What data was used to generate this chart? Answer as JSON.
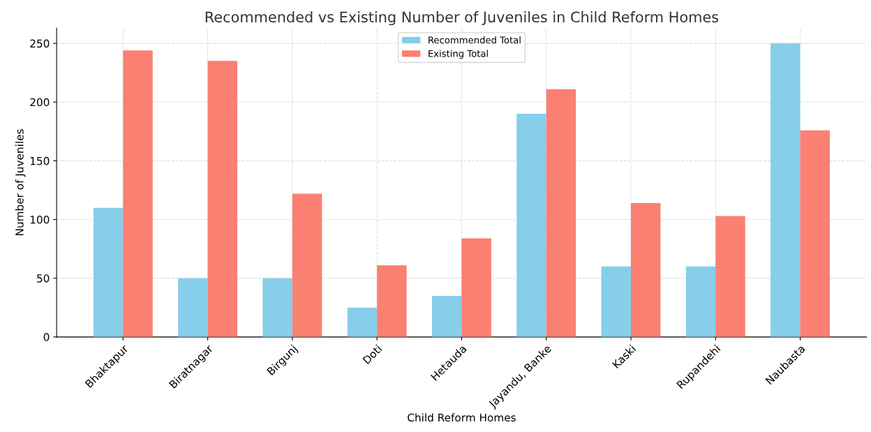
{
  "chart_data": {
    "type": "bar",
    "title": "Recommended vs Existing Number of Juveniles in Child Reform Homes",
    "xlabel": "Child Reform Homes",
    "ylabel": "Number of Juveniles",
    "categories": [
      "Bhaktapur",
      "Biratnagar",
      "Birgunj",
      "Doti",
      "Hetauda",
      "Jayandu, Banke",
      "Kaski",
      "Rupandehi",
      "Naubasta"
    ],
    "series": [
      {
        "name": "Recommended Total",
        "color": "#87ceeb",
        "values": [
          110,
          50,
          50,
          25,
          35,
          190,
          60,
          60,
          250
        ]
      },
      {
        "name": "Existing Total",
        "color": "#fa8072",
        "values": [
          244,
          235,
          122,
          61,
          84,
          211,
          114,
          103,
          176
        ]
      }
    ],
    "ylim": [
      0,
      263
    ],
    "yticks": [
      0,
      50,
      100,
      150,
      200,
      250
    ],
    "grid": true,
    "legend": "top"
  }
}
